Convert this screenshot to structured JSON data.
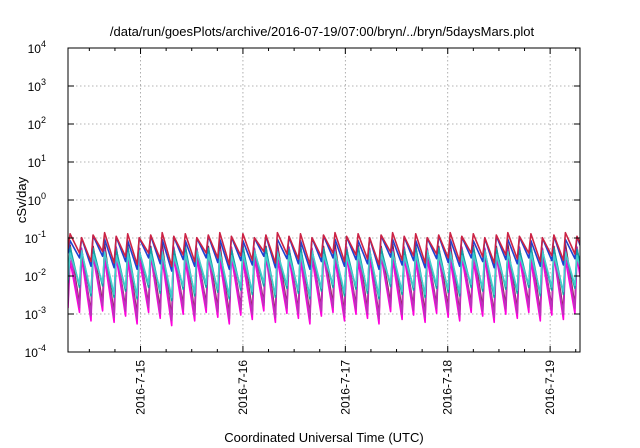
{
  "chart_data": {
    "type": "line",
    "title": "/data/run/goesPlots/archive/2016-07-19/07:00/bryn/../bryn/5daysMars.plot",
    "xlabel": "Coordinated Universal Time (UTC)",
    "ylabel": "cSv/day",
    "yscale": "log",
    "ylim": [
      0.0001,
      10000
    ],
    "y_ticks": [
      {
        "base": "10",
        "exp": "4"
      },
      {
        "base": "10",
        "exp": "3"
      },
      {
        "base": "10",
        "exp": "2"
      },
      {
        "base": "10",
        "exp": "1"
      },
      {
        "base": "10",
        "exp": "0"
      },
      {
        "base": "10",
        "exp": "-1"
      },
      {
        "base": "10",
        "exp": "-2"
      },
      {
        "base": "10",
        "exp": "-3"
      },
      {
        "base": "10",
        "exp": "-4"
      }
    ],
    "x_range_days": [
      "2016-07-14 07:00",
      "2016-07-19 07:00"
    ],
    "x_ticks": [
      "2016-7-15",
      "2016-7-16",
      "2016-7-17",
      "2016-7-18",
      "2016-7-19"
    ],
    "grid": true,
    "sawtooth_period_hours": 2.7,
    "series": [
      {
        "color": "#ff00dd",
        "peak": 0.03,
        "trough": 0.0011
      },
      {
        "color": "#8b1a3a",
        "peak": 0.06,
        "trough": 0.0018
      },
      {
        "color": "#bb33bb",
        "peak": 0.05,
        "trough": 0.0015
      },
      {
        "color": "#11a4a4",
        "peak": 0.05,
        "trough": 0.005
      },
      {
        "color": "#44cccc",
        "peak": 0.04,
        "trough": 0.006
      },
      {
        "color": "#2040d0",
        "peak": 0.1,
        "trough": 0.03
      },
      {
        "color": "#cc2244",
        "peak": 0.12,
        "trough": 0.04
      }
    ]
  }
}
